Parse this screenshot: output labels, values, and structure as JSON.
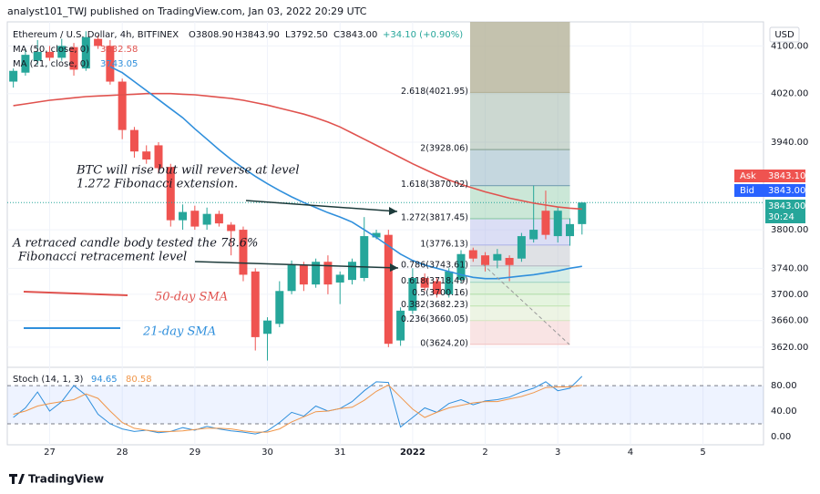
{
  "chart_data": {
    "type": "candlestick",
    "published": "analyst101_TWJ published on TradingView.com, Jan 03, 2022 20:29 UTC",
    "title": "Ethereum / U.S. Dollar, 4h, BITFINEX",
    "header_values": [
      "O3808.90",
      "H3843.90",
      "L3792.50",
      "C3843.00",
      "+34.10 (+0.90%)"
    ],
    "currency": "USD",
    "log_scale": true,
    "ylim": [
      3594,
      4141
    ],
    "yticks": [
      {
        "value": 3620,
        "label": "3620.00"
      },
      {
        "value": 3660,
        "label": "3660.00"
      },
      {
        "value": 3700,
        "label": "3700.00"
      },
      {
        "value": 3740,
        "label": "3740.00"
      },
      {
        "value": 3800,
        "label": "3800.00"
      },
      {
        "value": 3940,
        "label": "3940.00"
      },
      {
        "value": 4020,
        "label": "4020.00"
      },
      {
        "value": 4100,
        "label": "4100.00"
      }
    ],
    "xlim": [
      -0.5,
      62
    ],
    "xticks": [
      {
        "value": 3,
        "label": "27"
      },
      {
        "value": 9,
        "label": "28"
      },
      {
        "value": 15,
        "label": "29"
      },
      {
        "value": 21,
        "label": "30"
      },
      {
        "value": 27,
        "label": "31"
      },
      {
        "value": 33,
        "label": "2022"
      },
      {
        "value": 39,
        "label": "2"
      },
      {
        "value": 45,
        "label": "3"
      },
      {
        "value": 51,
        "label": "4"
      },
      {
        "value": 57,
        "label": "5"
      }
    ],
    "up_color": "#26a69a",
    "down_color": "#ef5350",
    "open": [
      4040,
      4055,
      4075,
      4090,
      4080,
      4098,
      4062,
      4112,
      4100,
      4040,
      3960,
      3925,
      3935,
      3900,
      3815,
      3830,
      3808,
      3825,
      3808,
      3800,
      3735,
      3640,
      3655,
      3705,
      3745,
      3715,
      3750,
      3718,
      3722,
      3725,
      3788,
      3792,
      3630,
      3675,
      3725,
      3720,
      3700,
      3722,
      3768,
      3760,
      3752,
      3756,
      3755,
      3785,
      3830,
      3790,
      3790,
      3808.9
    ],
    "high": [
      4062,
      4095,
      4110,
      4100,
      4112,
      4105,
      4125,
      4118,
      4110,
      4045,
      3965,
      3935,
      3940,
      3905,
      3840,
      3838,
      3835,
      3830,
      3812,
      3805,
      3740,
      3665,
      3720,
      3752,
      3750,
      3755,
      3760,
      3735,
      3755,
      3820,
      3800,
      3800,
      3680,
      3740,
      3732,
      3725,
      3740,
      3768,
      3772,
      3765,
      3770,
      3760,
      3795,
      3870,
      3862,
      3835,
      3818,
      3843.9
    ],
    "low": [
      4030,
      4050,
      4068,
      4075,
      4075,
      4050,
      4058,
      4095,
      4035,
      3945,
      3915,
      3905,
      3890,
      3805,
      3800,
      3800,
      3800,
      3805,
      3760,
      3720,
      3615,
      3600,
      3650,
      3700,
      3705,
      3710,
      3700,
      3685,
      3715,
      3720,
      3785,
      3620,
      3622,
      3670,
      3705,
      3695,
      3695,
      3718,
      3750,
      3735,
      3740,
      3720,
      3750,
      3780,
      3785,
      3780,
      3775,
      3792.5
    ],
    "close": [
      4058,
      4085,
      4090,
      4080,
      4100,
      4060,
      4115,
      4100,
      4040,
      3960,
      3925,
      3912,
      3898,
      3815,
      3828,
      3805,
      3825,
      3810,
      3798,
      3730,
      3635,
      3660,
      3705,
      3745,
      3715,
      3750,
      3715,
      3730,
      3750,
      3790,
      3795,
      3625,
      3675,
      3725,
      3710,
      3700,
      3735,
      3762,
      3755,
      3745,
      3762,
      3745,
      3790,
      3800,
      3792,
      3830,
      3808.9,
      3843
    ],
    "series": [
      {
        "name": "MA (50, close, 0)",
        "color": "#e0524e",
        "value_label": "3832.58",
        "values": [
          4000,
          4003,
          4006,
          4009,
          4011,
          4013,
          4015,
          4016,
          4017,
          4018,
          4019,
          4020,
          4020,
          4020,
          4019,
          4018,
          4016,
          4014,
          4012,
          4009,
          4005,
          4001,
          3996,
          3991,
          3986,
          3980,
          3973,
          3965,
          3955,
          3945,
          3935,
          3925,
          3915,
          3905,
          3896,
          3887,
          3879,
          3872,
          3866,
          3860,
          3855,
          3850,
          3846,
          3842,
          3839,
          3836,
          3834,
          3832.58
        ]
      },
      {
        "name": "MA (21, close, 0)",
        "color": "#2f8fdc",
        "value_label": "3743.05",
        "values": [
          null,
          null,
          null,
          null,
          null,
          null,
          null,
          null,
          4065,
          4055,
          4040,
          4025,
          4010,
          3995,
          3980,
          3962,
          3945,
          3928,
          3912,
          3898,
          3885,
          3873,
          3862,
          3852,
          3843,
          3835,
          3827,
          3820,
          3812,
          3800,
          3788,
          3775,
          3762,
          3752,
          3745,
          3740,
          3735,
          3730,
          3726,
          3724,
          3724,
          3726,
          3728,
          3730,
          3733,
          3736,
          3740,
          3743.05
        ]
      }
    ],
    "quotes": {
      "ask_label": "Ask",
      "ask": "3843.10",
      "bid_label": "Bid",
      "bid": "3843.00",
      "last": "3843.00",
      "countdown": "30:24"
    },
    "fib": [
      {
        "label": "2.618(4021.95)",
        "price": 4021.95,
        "color": "#b5b39a"
      },
      {
        "label": "2(3928.06)",
        "price": 3928.06,
        "color": "#8fa89a"
      },
      {
        "label": "1.618(3870.02)",
        "price": 3870.02,
        "color": "#7fa6b8"
      },
      {
        "label": "1.272(3817.45)",
        "price": 3817.45,
        "color": "#8cc9a6"
      },
      {
        "label": "1(3776.13)",
        "price": 3776.13,
        "color": "#b0b6e8"
      },
      {
        "label": "0.786(3743.61)",
        "price": 3743.61,
        "color": "#b9bcc6"
      },
      {
        "label": "0.618(3718.49)",
        "price": 3718.49,
        "color": "#a7d8c8"
      },
      {
        "label": "0.5(3700.16)",
        "price": 3700.16,
        "color": "#b8e0b0"
      },
      {
        "label": "0.382(3682.23)",
        "price": 3682.23,
        "color": "#c6e6b8"
      },
      {
        "label": "0.236(3660.05)",
        "price": 3660.05,
        "color": "#d8e6c4"
      },
      {
        "label": "0(3624.20)",
        "price": 3624.2,
        "color": "#f2c4c4"
      }
    ],
    "annotations": [
      "BTC will rise but will reverse at level",
      "1.272 Fibonacci extension.",
      "A retraced candle body tested the 78.6%",
      "Fibonacci retracement level",
      "50-day SMA",
      "21-day SMA"
    ],
    "stoch": {
      "name": "Stoch (14, 1, 3)",
      "ylim": [
        -13,
        106
      ],
      "yticks": [
        {
          "value": 0,
          "label": "0.00"
        },
        {
          "value": 40,
          "label": "40.00"
        },
        {
          "value": 80,
          "label": "80.00"
        }
      ],
      "band": [
        20,
        80
      ],
      "series": [
        {
          "name": "K",
          "color": "#2f8fdc",
          "value_label": "94.65",
          "values": [
            30,
            45,
            70,
            40,
            55,
            80,
            65,
            35,
            20,
            12,
            8,
            10,
            6,
            8,
            14,
            10,
            16,
            12,
            9,
            7,
            4,
            9,
            22,
            38,
            32,
            48,
            40,
            44,
            55,
            72,
            86,
            85,
            15,
            30,
            45,
            38,
            52,
            58,
            50,
            56,
            58,
            62,
            70,
            76,
            86,
            72,
            76,
            94.65
          ]
        },
        {
          "name": "D",
          "color": "#f0964a",
          "value_label": "80.58",
          "values": [
            35,
            40,
            48,
            52,
            55,
            58,
            67,
            60,
            40,
            22,
            13,
            10,
            8,
            8,
            9,
            11,
            13,
            13,
            12,
            9,
            7,
            7,
            12,
            23,
            31,
            39,
            40,
            44,
            46,
            57,
            71,
            81,
            62,
            43,
            30,
            38,
            45,
            49,
            53,
            55,
            55,
            59,
            63,
            69,
            77,
            78,
            78,
            80.58
          ]
        }
      ]
    },
    "footer": "TradingView"
  }
}
